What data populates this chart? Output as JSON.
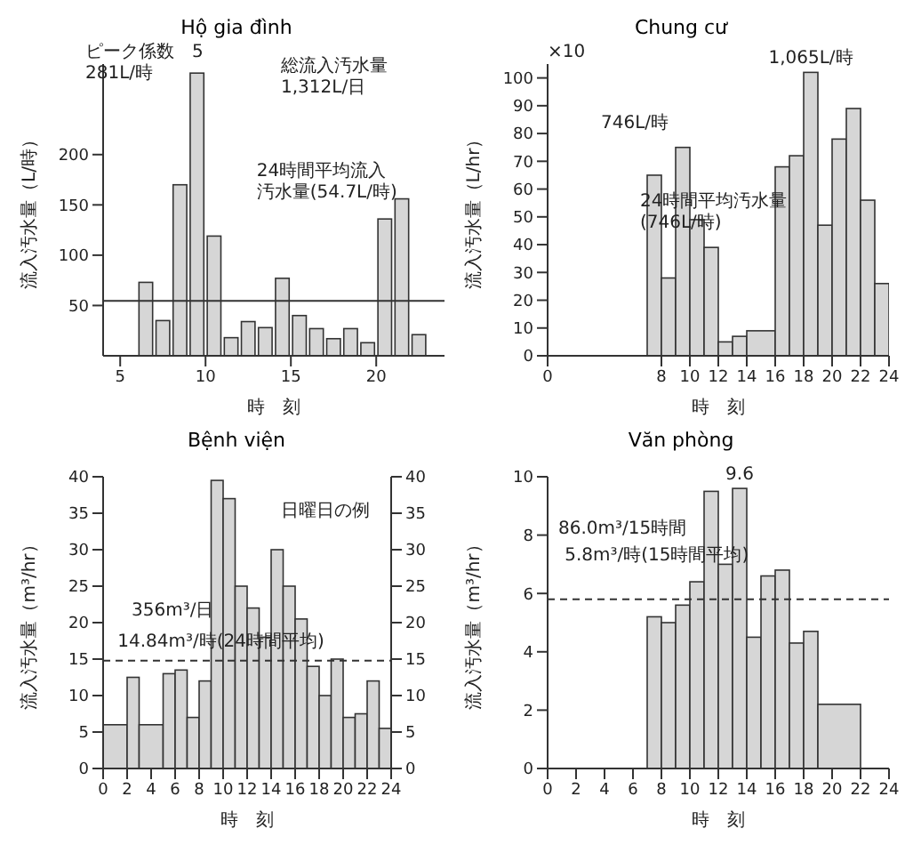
{
  "chart_data": [
    {
      "type": "bar",
      "title": "Hộ gia đình",
      "xlabel": "時　刻",
      "ylabel": "流入汚水量（L/時）",
      "color": "#d6d6d6",
      "x": [
        6.5,
        7.5,
        8.5,
        9.5,
        10.5,
        11.5,
        12.5,
        13.5,
        14.5,
        15.5,
        16.5,
        17.5,
        18.5,
        19.5,
        20.5,
        21.5,
        22.5
      ],
      "values": [
        73,
        35,
        170,
        281,
        119,
        18,
        34,
        28,
        77,
        40,
        27,
        17,
        27,
        13,
        136,
        156,
        21
      ],
      "xlim": [
        4,
        24
      ],
      "xticks": [
        5,
        10,
        15,
        20
      ],
      "ylim": [
        0,
        290
      ],
      "yticks": [
        50,
        100,
        150,
        200
      ],
      "ref_lines": [
        {
          "axis": "y",
          "value": 54.7,
          "label": "24時間平均流入汚水量(54.7L/時)",
          "line_style": "solid"
        }
      ],
      "annotations": [
        "ピーク係数　5",
        "281L/時",
        "総流入汚水量",
        "1,312L/日"
      ]
    },
    {
      "type": "histogram",
      "title": "Chung cư",
      "xlabel": "時　刻",
      "ylabel": "流入汚水量（L/hr）",
      "color": "#d6d6d6",
      "bins": [
        7,
        8,
        9,
        10,
        11,
        12,
        13,
        14,
        16,
        17,
        18,
        19,
        20,
        21,
        22,
        23,
        24
      ],
      "values": [
        65,
        28,
        75,
        49,
        39,
        5,
        7,
        9,
        68,
        72,
        102,
        47,
        78,
        89,
        56,
        26
      ],
      "xlim": [
        0,
        24
      ],
      "xticks": [
        0,
        8,
        10,
        12,
        14,
        16,
        18,
        20,
        22,
        24
      ],
      "ylim": [
        0,
        105
      ],
      "yticks": [
        0,
        10,
        20,
        30,
        40,
        50,
        60,
        70,
        80,
        90,
        100
      ],
      "annotations": [
        "×10",
        "746L/時",
        {
          "text": "1,065L/時",
          "x": 18.5,
          "y": 102
        },
        "24時間平均汚水量",
        "(746L/時)"
      ]
    },
    {
      "type": "histogram",
      "title": "Bệnh viện",
      "xlabel": "時　刻",
      "ylabel": "流入汚水量（m³/hr）",
      "color": "#d6d6d6",
      "bins": [
        0,
        2,
        3,
        5,
        6,
        7,
        8,
        9,
        10,
        11,
        12,
        13,
        14,
        15,
        16,
        17,
        18,
        19,
        20,
        21,
        22,
        23,
        24
      ],
      "values": [
        6,
        12.5,
        6,
        13,
        13.5,
        7,
        12,
        39.5,
        37,
        25,
        22,
        18,
        30,
        25,
        20.5,
        14,
        10,
        15,
        7,
        7.5,
        12,
        5.5
      ],
      "xlim": [
        0,
        24
      ],
      "xticks": [
        0,
        2,
        4,
        6,
        8,
        10,
        12,
        14,
        16,
        18,
        20,
        22,
        24
      ],
      "ylim": [
        0,
        40
      ],
      "yticks": [
        0,
        5,
        10,
        15,
        20,
        25,
        30,
        35,
        40
      ],
      "y2lim": [
        0,
        40
      ],
      "y2ticks": [
        0,
        5,
        10,
        15,
        20,
        25,
        30,
        35,
        40
      ],
      "ref_lines": [
        {
          "axis": "y",
          "value": 14.8,
          "label": "14.84m³/時(24時間平均)",
          "line_style": "dashed"
        }
      ],
      "annotations": [
        "日曜日の例",
        "356m³/日"
      ]
    },
    {
      "type": "histogram",
      "title": "Văn phòng",
      "xlabel": "時　刻",
      "ylabel": "流入汚水量（m³/hr）",
      "color": "#d6d6d6",
      "bins": [
        7,
        8,
        9,
        10,
        11,
        12,
        13,
        14,
        15,
        16,
        17,
        18,
        19,
        22
      ],
      "values": [
        5.2,
        5.0,
        5.6,
        6.4,
        9.5,
        7.0,
        9.6,
        4.5,
        6.6,
        6.8,
        4.3,
        4.7,
        2.2
      ],
      "xlim": [
        0,
        24
      ],
      "xticks": [
        0,
        2,
        4,
        6,
        8,
        10,
        12,
        14,
        16,
        18,
        20,
        22,
        24
      ],
      "ylim": [
        0,
        10
      ],
      "yticks": [
        0,
        2,
        4,
        6,
        8,
        10
      ],
      "ref_lines": [
        {
          "axis": "y",
          "value": 5.8,
          "label": "5.8m³/時(15時間平均)",
          "line_style": "dashed"
        }
      ],
      "annotations": [
        {
          "text": "9.6",
          "x": 13.5,
          "y": 9.6
        },
        "86.0m³/15時間"
      ]
    }
  ]
}
